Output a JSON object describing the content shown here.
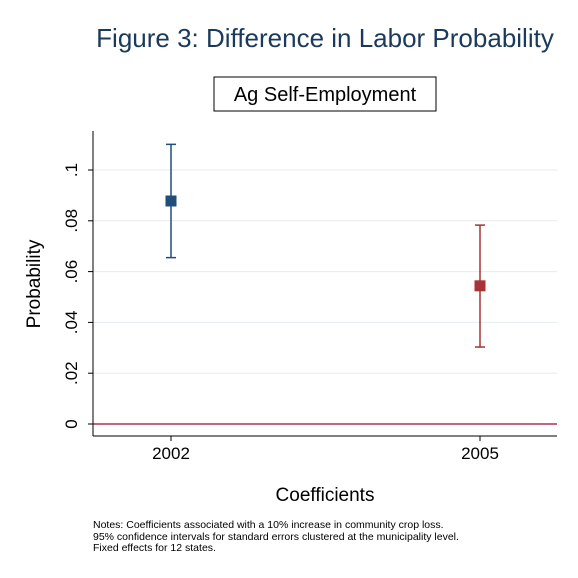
{
  "chart_data": {
    "type": "scatter",
    "title": "Figure 3: Difference in Labor Probability",
    "subtitle": "Ag Self-Employment",
    "xlabel": "Coefficients",
    "ylabel": "Probability",
    "categories": [
      "2002",
      "2005"
    ],
    "ylim": [
      -0.01,
      0.115
    ],
    "yticks": [
      {
        "value": 0,
        "label": "0"
      },
      {
        "value": 0.02,
        "label": ".02"
      },
      {
        "value": 0.04,
        "label": ".04"
      },
      {
        "value": 0.06,
        "label": ".06"
      },
      {
        "value": 0.08,
        "label": ".08"
      },
      {
        "value": 0.1,
        "label": ".1"
      }
    ],
    "grid": true,
    "reference_line": {
      "value": 0,
      "color": "#b0344f"
    },
    "series": [
      {
        "category": "2002",
        "estimate": 0.0878,
        "ci_low": 0.0655,
        "ci_high": 0.1101,
        "color": "#1f4e79"
      },
      {
        "category": "2005",
        "estimate": 0.0544,
        "ci_low": 0.0303,
        "ci_high": 0.0783,
        "color": "#a83236"
      }
    ]
  },
  "notes": [
    "Notes: Coefficients associated with a 10% increase in community crop loss.",
    "95% confidence intervals for standard errors clustered at the municipality level.",
    "Fixed effects for 12 states."
  ]
}
